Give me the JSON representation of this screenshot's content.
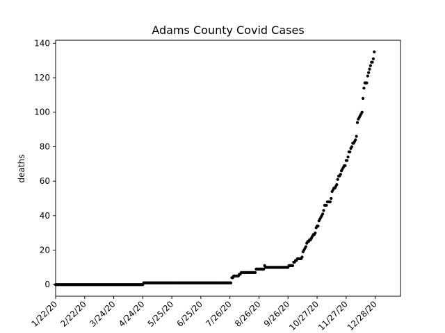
{
  "chart_data": {
    "type": "scatter",
    "title": "Adams County Covid Cases",
    "xlabel": "",
    "ylabel": "deaths",
    "x_axis": {
      "start_date": "2020-01-22",
      "end_date": "2021-01-24",
      "ticks": [
        "1/22/20",
        "2/22/20",
        "3/24/20",
        "4/24/20",
        "5/25/20",
        "6/25/20",
        "7/26/20",
        "8/26/20",
        "9/26/20",
        "10/27/20",
        "11/27/20",
        "12/28/20"
      ],
      "tick_label_rotation": 45
    },
    "y_axis": {
      "ylim": [
        -6.75,
        141.75
      ],
      "ticks": [
        0,
        20,
        40,
        60,
        80,
        100,
        120,
        140
      ]
    },
    "grid": false,
    "marker_color": "#000000",
    "series": [
      {
        "values_by_day_segments": [
          {
            "from": "2020-01-22",
            "to": "2020-04-24",
            "value": 0
          },
          {
            "from": "2020-04-25",
            "to": "2020-07-27",
            "value": 1
          },
          {
            "from": "2020-07-28",
            "to": "2020-07-29",
            "value": 4
          },
          {
            "from": "2020-07-30",
            "to": "2020-08-04",
            "value": 5
          },
          {
            "from": "2020-08-05",
            "to": "2020-08-06",
            "value": 6
          },
          {
            "from": "2020-08-07",
            "to": "2020-08-22",
            "value": 7
          },
          {
            "from": "2020-08-23",
            "to": "2020-08-31",
            "value": 9
          },
          {
            "from": "2020-09-01",
            "to": "2020-09-01",
            "value": 11
          },
          {
            "from": "2020-09-02",
            "to": "2020-09-26",
            "value": 10
          },
          {
            "from": "2020-09-27",
            "to": "2020-10-01",
            "value": 11
          },
          {
            "from": "2020-10-02",
            "to": "2020-10-03",
            "value": 13
          },
          {
            "from": "2020-10-04",
            "to": "2020-10-05",
            "value": 14
          },
          {
            "from": "2020-10-06",
            "to": "2020-10-10",
            "value": 15
          },
          {
            "from": "2020-10-11",
            "to": "2020-10-11",
            "value": 16
          }
        ],
        "points": [
          [
            "2020-10-12",
            19
          ],
          [
            "2020-10-13",
            20
          ],
          [
            "2020-10-14",
            21
          ],
          [
            "2020-10-15",
            22
          ],
          [
            "2020-10-16",
            24
          ],
          [
            "2020-10-17",
            25
          ],
          [
            "2020-10-18",
            25
          ],
          [
            "2020-10-19",
            26
          ],
          [
            "2020-10-20",
            26
          ],
          [
            "2020-10-21",
            27
          ],
          [
            "2020-10-22",
            28
          ],
          [
            "2020-10-23",
            29
          ],
          [
            "2020-10-24",
            29
          ],
          [
            "2020-10-25",
            30
          ],
          [
            "2020-10-26",
            33
          ],
          [
            "2020-10-27",
            34
          ],
          [
            "2020-10-28",
            34
          ],
          [
            "2020-10-29",
            37
          ],
          [
            "2020-10-30",
            38
          ],
          [
            "2020-10-31",
            39
          ],
          [
            "2020-11-01",
            40
          ],
          [
            "2020-11-02",
            41
          ],
          [
            "2020-11-03",
            43
          ],
          [
            "2020-11-04",
            46
          ],
          [
            "2020-11-05",
            46
          ],
          [
            "2020-11-06",
            46
          ],
          [
            "2020-11-07",
            48
          ],
          [
            "2020-11-08",
            48
          ],
          [
            "2020-11-09",
            48
          ],
          [
            "2020-11-10",
            48
          ],
          [
            "2020-11-11",
            50
          ],
          [
            "2020-11-12",
            54
          ],
          [
            "2020-11-13",
            55
          ],
          [
            "2020-11-14",
            56
          ],
          [
            "2020-11-15",
            56
          ],
          [
            "2020-11-16",
            57
          ],
          [
            "2020-11-17",
            58
          ],
          [
            "2020-11-18",
            61
          ],
          [
            "2020-11-19",
            63
          ],
          [
            "2020-11-20",
            63
          ],
          [
            "2020-11-21",
            64
          ],
          [
            "2020-11-22",
            66
          ],
          [
            "2020-11-23",
            67
          ],
          [
            "2020-11-24",
            68
          ],
          [
            "2020-11-25",
            69
          ],
          [
            "2020-11-26",
            69
          ],
          [
            "2020-11-27",
            72
          ],
          [
            "2020-11-28",
            72
          ],
          [
            "2020-11-29",
            74
          ],
          [
            "2020-11-30",
            77
          ],
          [
            "2020-12-01",
            77
          ],
          [
            "2020-12-02",
            79
          ],
          [
            "2020-12-03",
            80
          ],
          [
            "2020-12-04",
            82
          ],
          [
            "2020-12-05",
            82
          ],
          [
            "2020-12-06",
            83
          ],
          [
            "2020-12-07",
            84
          ],
          [
            "2020-12-08",
            86
          ],
          [
            "2020-12-09",
            94
          ],
          [
            "2020-12-10",
            96
          ],
          [
            "2020-12-11",
            97
          ],
          [
            "2020-12-12",
            98
          ],
          [
            "2020-12-13",
            99
          ],
          [
            "2020-12-14",
            100
          ],
          [
            "2020-12-15",
            108
          ],
          [
            "2020-12-16",
            114
          ],
          [
            "2020-12-17",
            117
          ],
          [
            "2020-12-18",
            117
          ],
          [
            "2020-12-19",
            117
          ],
          [
            "2020-12-20",
            121
          ],
          [
            "2020-12-21",
            123
          ],
          [
            "2020-12-22",
            125
          ],
          [
            "2020-12-23",
            127
          ],
          [
            "2020-12-24",
            129
          ],
          [
            "2020-12-25",
            129
          ],
          [
            "2020-12-26",
            131
          ],
          [
            "2020-12-27",
            135
          ]
        ]
      }
    ]
  }
}
